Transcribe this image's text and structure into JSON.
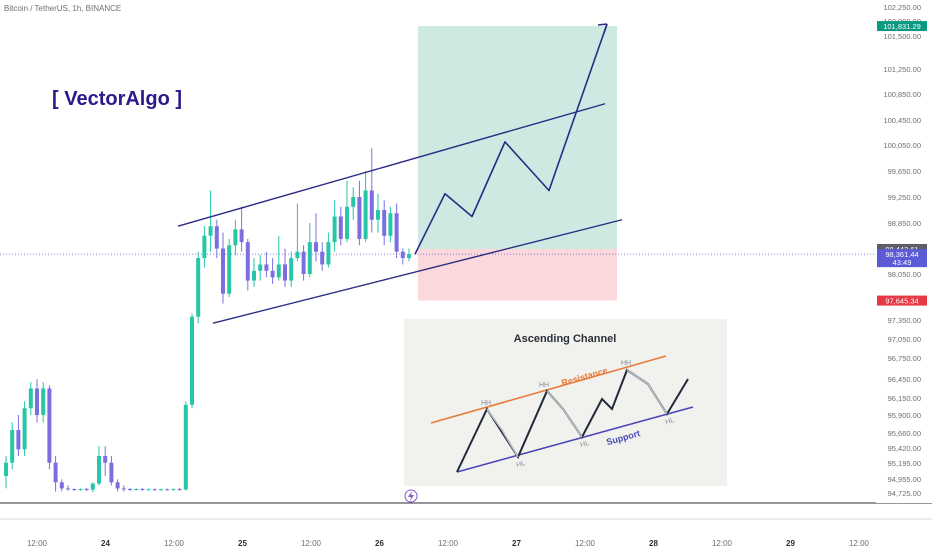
{
  "header": {
    "symbol_line": "Bitcoin / TetherUS, 1h, BINANCE"
  },
  "brand": {
    "label": "[ VectorAlgo ]",
    "color": "#2a1a8c"
  },
  "colors": {
    "up": "#26c6a6",
    "down": "#7b6fe0",
    "channel": "#2a2b84",
    "target_zone": "#cde9e1",
    "stop_zone": "#fbd8dc",
    "target_tag": "#0b9981",
    "stop_tag": "#e53945",
    "last_tag": "#5c5bd6"
  },
  "price_tags": {
    "target": "101,831.29",
    "entry": "98,442.61",
    "last": "98,361.44",
    "countdown": "43:49",
    "stop": "97,645.34"
  },
  "inset": {
    "title": "Ascending Channel",
    "resistance_label": "Resistance",
    "support_label": "Support",
    "hh_labels": [
      "HH",
      "HH",
      "HH"
    ],
    "hl_labels": [
      "HL",
      "HL",
      "HL"
    ]
  },
  "chart_data": {
    "type": "candlestick",
    "symbol": "Bitcoin / TetherUS",
    "interval": "1h",
    "exchange": "BINANCE",
    "y_ticks": [
      "102,250.00",
      "102,000.00",
      "101,500.00",
      "101,250.00",
      "100,850.00",
      "100,450.00",
      "100,050.00",
      "99,650.00",
      "99,250.00",
      "98,850.00",
      "98,050.00",
      "97,350.00",
      "97,050.00",
      "96,750.00",
      "96,450.00",
      "96,150.00",
      "95,900.00",
      "95,660.00",
      "95,420.00",
      "95,195.00",
      "94,955.00",
      "94,725.00"
    ],
    "x_ticks": [
      "12:00",
      "24",
      "12:00",
      "25",
      "12:00",
      "26",
      "12:00",
      "27",
      "12:00",
      "28",
      "12:00",
      "29",
      "12:00"
    ],
    "candles": [
      {
        "o": 95000,
        "h": 95300,
        "l": 94800,
        "c": 95200
      },
      {
        "o": 95200,
        "h": 95800,
        "l": 95100,
        "c": 95700
      },
      {
        "o": 95700,
        "h": 95900,
        "l": 95300,
        "c": 95400
      },
      {
        "o": 95400,
        "h": 96100,
        "l": 95300,
        "c": 96000
      },
      {
        "o": 96000,
        "h": 96400,
        "l": 95900,
        "c": 96300
      },
      {
        "o": 96300,
        "h": 96450,
        "l": 95800,
        "c": 95900
      },
      {
        "o": 95900,
        "h": 96400,
        "l": 95800,
        "c": 96300
      },
      {
        "o": 96300,
        "h": 96350,
        "l": 95100,
        "c": 95200
      },
      {
        "o": 95200,
        "h": 95300,
        "l": 94750,
        "c": 94900
      },
      {
        "o": 94900,
        "h": 94950,
        "l": 94750,
        "c": 94800
      },
      {
        "o": 94800,
        "h": 94850,
        "l": 94760,
        "c": 94790
      },
      {
        "o": 94790,
        "h": 94800,
        "l": 94760,
        "c": 94780
      },
      {
        "o": 94780,
        "h": 94800,
        "l": 94760,
        "c": 94790
      },
      {
        "o": 94790,
        "h": 94810,
        "l": 94760,
        "c": 94780
      },
      {
        "o": 94780,
        "h": 94900,
        "l": 94740,
        "c": 94880
      },
      {
        "o": 94880,
        "h": 95450,
        "l": 94850,
        "c": 95300
      },
      {
        "o": 95300,
        "h": 95450,
        "l": 95000,
        "c": 95200
      },
      {
        "o": 95200,
        "h": 95300,
        "l": 94850,
        "c": 94900
      },
      {
        "o": 94900,
        "h": 94950,
        "l": 94750,
        "c": 94800
      },
      {
        "o": 94800,
        "h": 94850,
        "l": 94750,
        "c": 94790
      },
      {
        "o": 94790,
        "h": 94810,
        "l": 94765,
        "c": 94780
      },
      {
        "o": 94780,
        "h": 94800,
        "l": 94765,
        "c": 94790
      },
      {
        "o": 94790,
        "h": 94810,
        "l": 94765,
        "c": 94780
      },
      {
        "o": 94780,
        "h": 94800,
        "l": 94765,
        "c": 94785
      },
      {
        "o": 94785,
        "h": 94800,
        "l": 94765,
        "c": 94780
      },
      {
        "o": 94780,
        "h": 94795,
        "l": 94765,
        "c": 94785
      },
      {
        "o": 94785,
        "h": 94800,
        "l": 94765,
        "c": 94780
      },
      {
        "o": 94780,
        "h": 94800,
        "l": 94765,
        "c": 94790
      },
      {
        "o": 94790,
        "h": 94810,
        "l": 94765,
        "c": 94780
      },
      {
        "o": 94780,
        "h": 96100,
        "l": 94770,
        "c": 96050
      },
      {
        "o": 96050,
        "h": 97450,
        "l": 96000,
        "c": 97400
      },
      {
        "o": 97400,
        "h": 98400,
        "l": 97300,
        "c": 98300
      },
      {
        "o": 98300,
        "h": 98800,
        "l": 98150,
        "c": 98650
      },
      {
        "o": 98650,
        "h": 99350,
        "l": 98400,
        "c": 98800
      },
      {
        "o": 98800,
        "h": 98900,
        "l": 98300,
        "c": 98450
      },
      {
        "o": 98450,
        "h": 98700,
        "l": 97600,
        "c": 97750
      },
      {
        "o": 97750,
        "h": 98600,
        "l": 97700,
        "c": 98500
      },
      {
        "o": 98500,
        "h": 98900,
        "l": 98350,
        "c": 98750
      },
      {
        "o": 98750,
        "h": 99100,
        "l": 98400,
        "c": 98550
      },
      {
        "o": 98550,
        "h": 98600,
        "l": 97800,
        "c": 97950
      },
      {
        "o": 97950,
        "h": 98300,
        "l": 97850,
        "c": 98100
      },
      {
        "o": 98100,
        "h": 98350,
        "l": 97950,
        "c": 98200
      },
      {
        "o": 98200,
        "h": 98400,
        "l": 98000,
        "c": 98100
      },
      {
        "o": 98100,
        "h": 98300,
        "l": 97900,
        "c": 98000
      },
      {
        "o": 98000,
        "h": 98650,
        "l": 97950,
        "c": 98200
      },
      {
        "o": 98200,
        "h": 98450,
        "l": 97850,
        "c": 97950
      },
      {
        "o": 97950,
        "h": 98400,
        "l": 97850,
        "c": 98300
      },
      {
        "o": 98300,
        "h": 99150,
        "l": 98250,
        "c": 98400
      },
      {
        "o": 98400,
        "h": 98500,
        "l": 97950,
        "c": 98050
      },
      {
        "o": 98050,
        "h": 98850,
        "l": 98000,
        "c": 98550
      },
      {
        "o": 98550,
        "h": 99000,
        "l": 98250,
        "c": 98400
      },
      {
        "o": 98400,
        "h": 98550,
        "l": 98100,
        "c": 98200
      },
      {
        "o": 98200,
        "h": 98700,
        "l": 98150,
        "c": 98550
      },
      {
        "o": 98550,
        "h": 99200,
        "l": 98400,
        "c": 98950
      },
      {
        "o": 98950,
        "h": 99100,
        "l": 98500,
        "c": 98600
      },
      {
        "o": 98600,
        "h": 99500,
        "l": 98550,
        "c": 99100
      },
      {
        "o": 99100,
        "h": 99400,
        "l": 98900,
        "c": 99250
      },
      {
        "o": 99250,
        "h": 99500,
        "l": 98500,
        "c": 98600
      },
      {
        "o": 98600,
        "h": 99650,
        "l": 98550,
        "c": 99350
      },
      {
        "o": 99350,
        "h": 100000,
        "l": 98700,
        "c": 98900
      },
      {
        "o": 98900,
        "h": 99300,
        "l": 98700,
        "c": 99050
      },
      {
        "o": 99050,
        "h": 99200,
        "l": 98500,
        "c": 98650
      },
      {
        "o": 98650,
        "h": 99100,
        "l": 98550,
        "c": 99000
      },
      {
        "o": 99000,
        "h": 99150,
        "l": 98300,
        "c": 98400
      },
      {
        "o": 98400,
        "h": 98450,
        "l": 98200,
        "c": 98300
      },
      {
        "o": 98300,
        "h": 98450,
        "l": 98250,
        "c": 98361.44
      }
    ],
    "channel_upper": [
      [
        98800,
        99600
      ],
      [
        98900,
        100700
      ]
    ],
    "channel_lower": [
      [
        97300,
        98100
      ],
      [
        98100,
        98900
      ]
    ],
    "position": {
      "entry": 98442.61,
      "target": 101831.29,
      "stop": 97645.34
    },
    "projection": [
      98361,
      99300,
      98950,
      100100,
      99350,
      101900
    ]
  }
}
